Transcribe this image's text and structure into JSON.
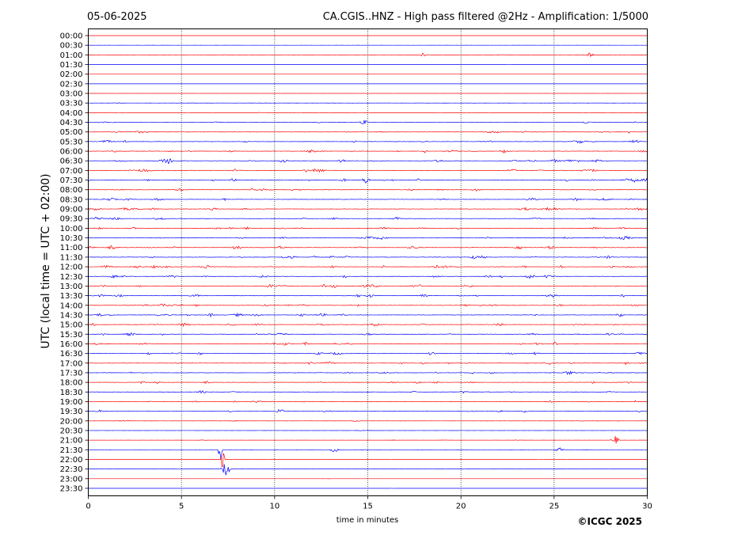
{
  "chart_data": {
    "type": "line",
    "date": "05-06-2025",
    "title": "CA.CGIS..HNZ - High pass filtered @2Hz - Amplification: 1/5000",
    "ylabel": "UTC (local time = UTC + 02:00)",
    "xlabel": "time in minutes",
    "copyright": "©ICGC 2025",
    "xlim": [
      0,
      30
    ],
    "x_ticks": [
      "0",
      "5",
      "10",
      "15",
      "20",
      "25",
      "30"
    ],
    "x_tick_values": [
      0,
      5,
      10,
      15,
      20,
      25,
      30
    ],
    "y_ticks": [
      "00:00",
      "00:30",
      "01:00",
      "01:30",
      "02:00",
      "02:30",
      "03:00",
      "03:30",
      "04:00",
      "04:30",
      "05:00",
      "05:30",
      "06:00",
      "06:30",
      "07:00",
      "07:30",
      "08:00",
      "08:30",
      "09:00",
      "09:30",
      "10:00",
      "10:30",
      "11:00",
      "11:30",
      "12:00",
      "12:30",
      "13:00",
      "13:30",
      "14:00",
      "14:30",
      "15:00",
      "15:30",
      "16:00",
      "16:30",
      "17:00",
      "17:30",
      "18:00",
      "18:30",
      "19:00",
      "19:30",
      "20:00",
      "20:30",
      "21:00",
      "21:30",
      "22:00",
      "22:30",
      "23:00",
      "23:30"
    ],
    "grid": "vertical dotted lines at each x tick",
    "series_colors": [
      "#ff0000",
      "#0000ff"
    ],
    "line_activity": [
      0.02,
      0.05,
      0.1,
      0.03,
      0.02,
      0.02,
      0.05,
      0.15,
      0.12,
      0.3,
      0.45,
      0.55,
      0.6,
      0.65,
      0.65,
      0.62,
      0.6,
      0.55,
      0.6,
      0.55,
      0.6,
      0.6,
      0.62,
      0.65,
      0.65,
      0.6,
      0.62,
      0.6,
      0.62,
      0.58,
      0.6,
      0.55,
      0.6,
      0.55,
      0.58,
      0.55,
      0.55,
      0.52,
      0.45,
      0.4,
      0.2,
      0.15,
      0.18,
      0.1,
      0.05,
      0.05,
      0.04,
      0.03
    ],
    "events": [
      {
        "line": "01:00",
        "minute": 18.0,
        "amp": 0.5
      },
      {
        "line": "01:00",
        "minute": 26.9,
        "amp": 0.6
      },
      {
        "line": "04:30",
        "minute": 14.8,
        "amp": 0.6
      },
      {
        "line": "04:30",
        "minute": 26.8,
        "amp": 0.6
      },
      {
        "line": "06:30",
        "minute": 4.3,
        "amp": 0.8
      },
      {
        "line": "07:00",
        "minute": 2.9,
        "amp": 0.7
      },
      {
        "line": "07:30",
        "minute": 14.9,
        "amp": 0.8
      },
      {
        "line": "12:30",
        "minute": 23.7,
        "amp": 0.6
      },
      {
        "line": "14:30",
        "minute": 28.5,
        "amp": 0.6
      },
      {
        "line": "16:30",
        "minute": 18.4,
        "amp": 0.6
      },
      {
        "line": "19:30",
        "minute": 10.3,
        "amp": 0.6
      },
      {
        "line": "21:00",
        "minute": 28.3,
        "amp": 1.0
      },
      {
        "line": "21:30",
        "minute": 13.2,
        "amp": 0.9
      },
      {
        "line": "21:30",
        "minute": 25.3,
        "amp": 0.7
      },
      {
        "line": "21:30",
        "minute": 7.1,
        "amp": 4.5
      },
      {
        "line": "22:00",
        "minute": 7.2,
        "amp": 3.0
      },
      {
        "line": "22:30",
        "minute": 7.4,
        "amp": 2.0
      }
    ]
  }
}
